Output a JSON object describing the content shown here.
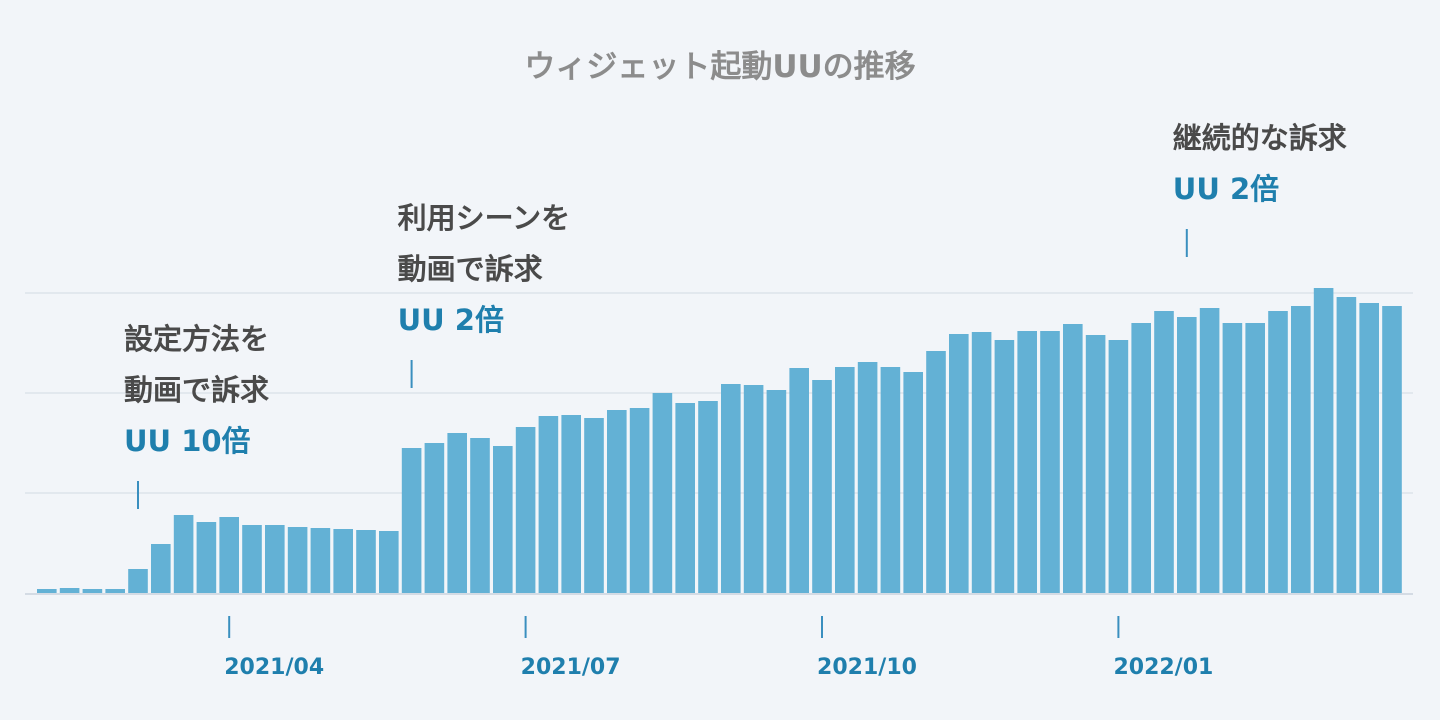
{
  "chart_data": {
    "type": "bar",
    "title": "ウィジェット起動UUの推移",
    "xlabel": "",
    "ylabel": "",
    "ylim": [
      0,
      300
    ],
    "grid": true,
    "legend": "none",
    "bar_color": "#63b1d5",
    "accent_color": "#1f7fad",
    "x_tick_labels": [
      {
        "label": "2021/04",
        "bar_index": 8
      },
      {
        "label": "2021/07",
        "bar_index": 21
      },
      {
        "label": "2021/10",
        "bar_index": 34
      },
      {
        "label": "2022/01",
        "bar_index": 47
      }
    ],
    "values": [
      4,
      5,
      4,
      4,
      24,
      49,
      78,
      71,
      76,
      68,
      68,
      66,
      65,
      64,
      63,
      62,
      145,
      150,
      160,
      155,
      147,
      166,
      177,
      178,
      175,
      183,
      185,
      200,
      190,
      192,
      209,
      208,
      203,
      225,
      213,
      226,
      231,
      226,
      221,
      242,
      259,
      261,
      253,
      262,
      262,
      269,
      258,
      253,
      270,
      282,
      276,
      285,
      270,
      270,
      282,
      287,
      305,
      296,
      290,
      287
    ],
    "annotations": [
      {
        "bar_index": 4,
        "lines": [
          "設定方法を",
          "動画で訴求"
        ],
        "value": "UU 10倍"
      },
      {
        "bar_index": 16,
        "lines": [
          "利用シーンを",
          "動画で訴求"
        ],
        "value": "UU 2倍"
      },
      {
        "bar_index": 50,
        "lines": [
          "継続的な訴求"
        ],
        "value": "UU 2倍"
      }
    ]
  }
}
